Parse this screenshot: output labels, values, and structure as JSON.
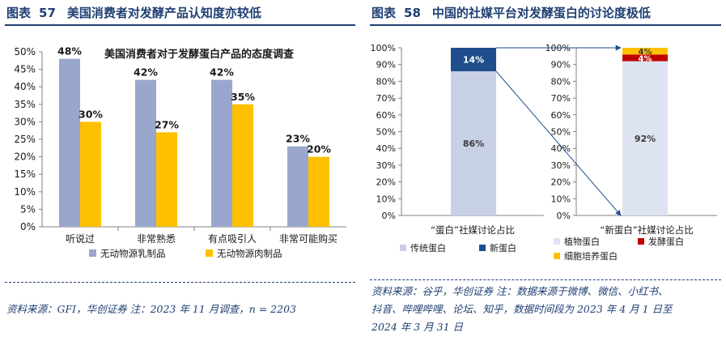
{
  "left_panel": {
    "label": "图表",
    "number": "57",
    "title": "美国消费者对发酵产品认知度亦较低",
    "source": "资料来源：GFI，华创证券 注：2023 年 11 月调查，n = 2203"
  },
  "right_panel": {
    "label": "图表",
    "number": "58",
    "title": "中国的社媒平台对发酵蛋白的讨论度极低",
    "source_lines": [
      "资料来源：谷乎，华创证券 注：数据来源于微博、微信、小红书、",
      "抖音、哔哩哔哩、论坛、知乎，数据时间段为 2023 年 4 月 1 日至",
      "2024 年 3 月 31 日"
    ]
  },
  "colors": {
    "series1": "#9aa7cc",
    "series2": "#ffc000",
    "traditional": "#c8d0e5",
    "new_protein": "#1f4e8c",
    "plant": "#dde3f1",
    "fermented": "#c00000",
    "cell": "#ffc000",
    "title": "#1f3f73"
  },
  "chart_data": [
    {
      "type": "bar",
      "title": "美国消费者对于发酵蛋白产品的态度调查",
      "categories": [
        "听说过",
        "非常熟悉",
        "有点吸引人",
        "非常可能购买"
      ],
      "series": [
        {
          "name": "无动物源乳制品",
          "values": [
            48,
            42,
            42,
            23
          ],
          "labels": [
            "48%",
            "42%",
            "42%",
            "23%"
          ]
        },
        {
          "name": "无动物源肉制品",
          "values": [
            30,
            27,
            35,
            20
          ],
          "labels": [
            "30%",
            "27%",
            "35%",
            "20%"
          ]
        }
      ],
      "ylim": [
        0,
        50
      ],
      "yticks": [
        "0%",
        "5%",
        "10%",
        "15%",
        "20%",
        "25%",
        "30%",
        "35%",
        "40%",
        "45%",
        "50%"
      ],
      "legend_position": "bottom"
    },
    {
      "type": "bar",
      "stacked": true,
      "xlabel": "“蛋白”社媒讨论占比",
      "segments": [
        {
          "name": "传统蛋白",
          "value": 86,
          "label": "86%"
        },
        {
          "name": "新蛋白",
          "value": 14,
          "label": "14%"
        }
      ],
      "ylim": [
        0,
        100
      ],
      "yticks": [
        "0%",
        "10%",
        "20%",
        "30%",
        "40%",
        "50%",
        "60%",
        "70%",
        "80%",
        "90%",
        "100%"
      ],
      "legend": [
        "传统蛋白",
        "新蛋白"
      ]
    },
    {
      "type": "bar",
      "stacked": true,
      "xlabel": "“新蛋白”社媒讨论占比",
      "segments": [
        {
          "name": "植物蛋白",
          "value": 92,
          "label": "92%"
        },
        {
          "name": "发酵蛋白",
          "value": 4,
          "label": "4%"
        },
        {
          "name": "细胞培养蛋白",
          "value": 4,
          "label": "4%"
        }
      ],
      "ylim": [
        0,
        100
      ],
      "yticks": [
        "0%",
        "10%",
        "20%",
        "30%",
        "40%",
        "50%",
        "60%",
        "70%",
        "80%",
        "90%",
        "100%"
      ],
      "legend": [
        "植物蛋白",
        "发酵蛋白",
        "细胞培养蛋白"
      ]
    }
  ]
}
